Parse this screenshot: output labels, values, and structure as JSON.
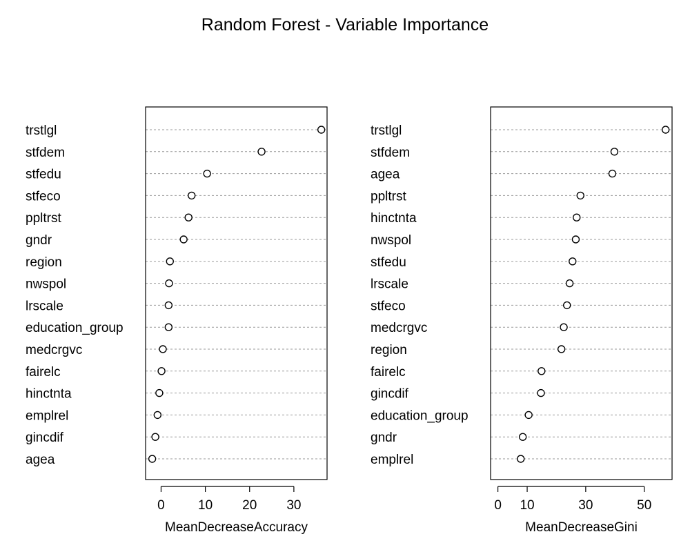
{
  "figure": {
    "title": "Random Forest - Variable Importance"
  },
  "chart_data": [
    {
      "type": "scatter",
      "subtype": "dotchart",
      "xlabel": "MeanDecreaseAccuracy",
      "ylabel": "",
      "xticks": [
        0,
        10,
        20,
        30
      ],
      "xlim": [
        -3.5,
        37.5
      ],
      "grid": "dotted horizontal",
      "categories": [
        "trstlgl",
        "stfdem",
        "stfedu",
        "stfeco",
        "ppltrst",
        "gndr",
        "region",
        "nwspol",
        "lrscale",
        "education_group",
        "medcrgvc",
        "fairelc",
        "hinctnta",
        "emplrel",
        "gincdif",
        "agea"
      ],
      "values": [
        36.2,
        22.7,
        10.4,
        6.9,
        6.2,
        5.1,
        2.0,
        1.8,
        1.7,
        1.7,
        0.4,
        0.1,
        -0.4,
        -0.8,
        -1.3,
        -2.0
      ]
    },
    {
      "type": "scatter",
      "subtype": "dotchart",
      "xlabel": "MeanDecreaseGini",
      "ylabel": "",
      "xticks": [
        0,
        10,
        30,
        50
      ],
      "xlim": [
        -2.5,
        59.5
      ],
      "grid": "dotted horizontal",
      "categories": [
        "trstlgl",
        "stfdem",
        "agea",
        "ppltrst",
        "hinctnta",
        "nwspol",
        "stfedu",
        "lrscale",
        "stfeco",
        "medcrgvc",
        "region",
        "fairelc",
        "gincdif",
        "education_group",
        "gndr",
        "emplrel"
      ],
      "values": [
        57.3,
        39.8,
        39.1,
        28.2,
        26.9,
        26.6,
        25.5,
        24.5,
        23.6,
        22.5,
        21.7,
        14.9,
        14.7,
        10.5,
        8.5,
        7.8
      ]
    }
  ]
}
